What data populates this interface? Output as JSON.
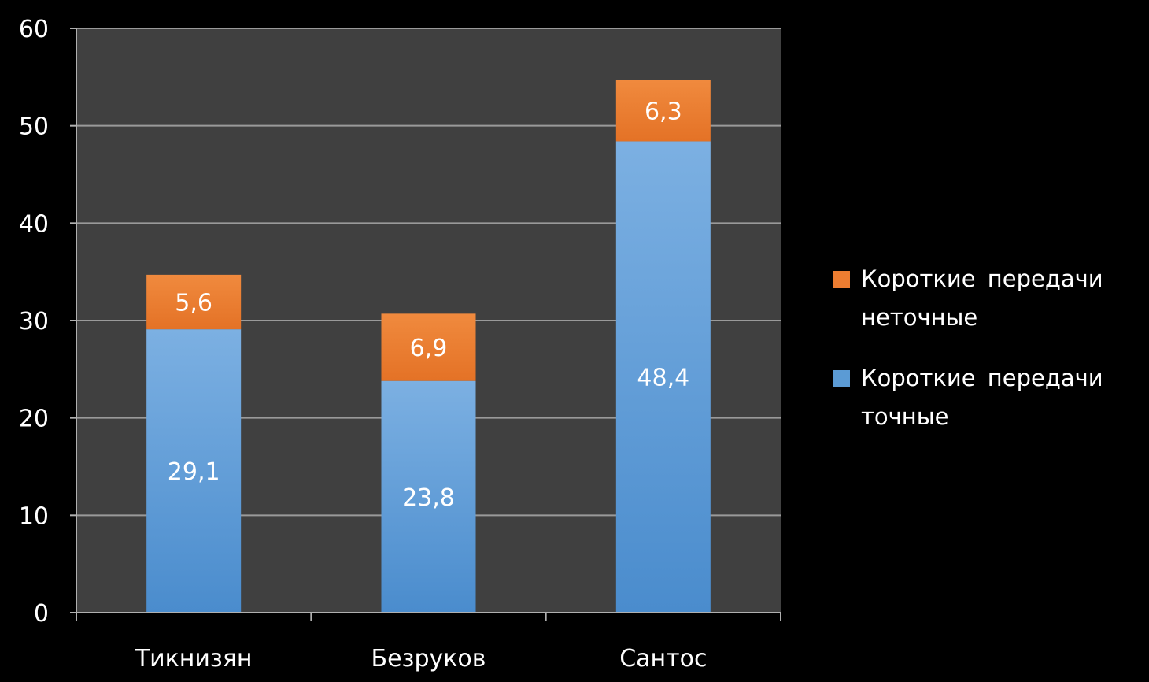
{
  "chart_data": {
    "type": "bar",
    "stacked": true,
    "categories": [
      "Тикнизян",
      "Безруков",
      "Сантос"
    ],
    "series": [
      {
        "name": "Короткие передачи точные",
        "values": [
          29.1,
          23.8,
          48.4
        ],
        "labels": [
          "29,1",
          "23,8",
          "48,4"
        ],
        "color": "#5b9bd5"
      },
      {
        "name": "Короткие передачи неточные",
        "values": [
          5.6,
          6.9,
          6.3
        ],
        "labels": [
          "5,6",
          "6,9",
          "6,3"
        ],
        "color": "#ed7d31"
      }
    ],
    "ylim": [
      0,
      60
    ],
    "yticks": [
      "0",
      "10",
      "20",
      "30",
      "40",
      "50",
      "60"
    ],
    "grid": true,
    "legend_position": "right",
    "plot_background": "#404040",
    "page_background": "#000000"
  },
  "legend": {
    "items": [
      {
        "label": "Короткие передачи неточные",
        "color": "#ed7d31"
      },
      {
        "label": "Короткие передачи точные",
        "color": "#5b9bd5"
      }
    ]
  }
}
